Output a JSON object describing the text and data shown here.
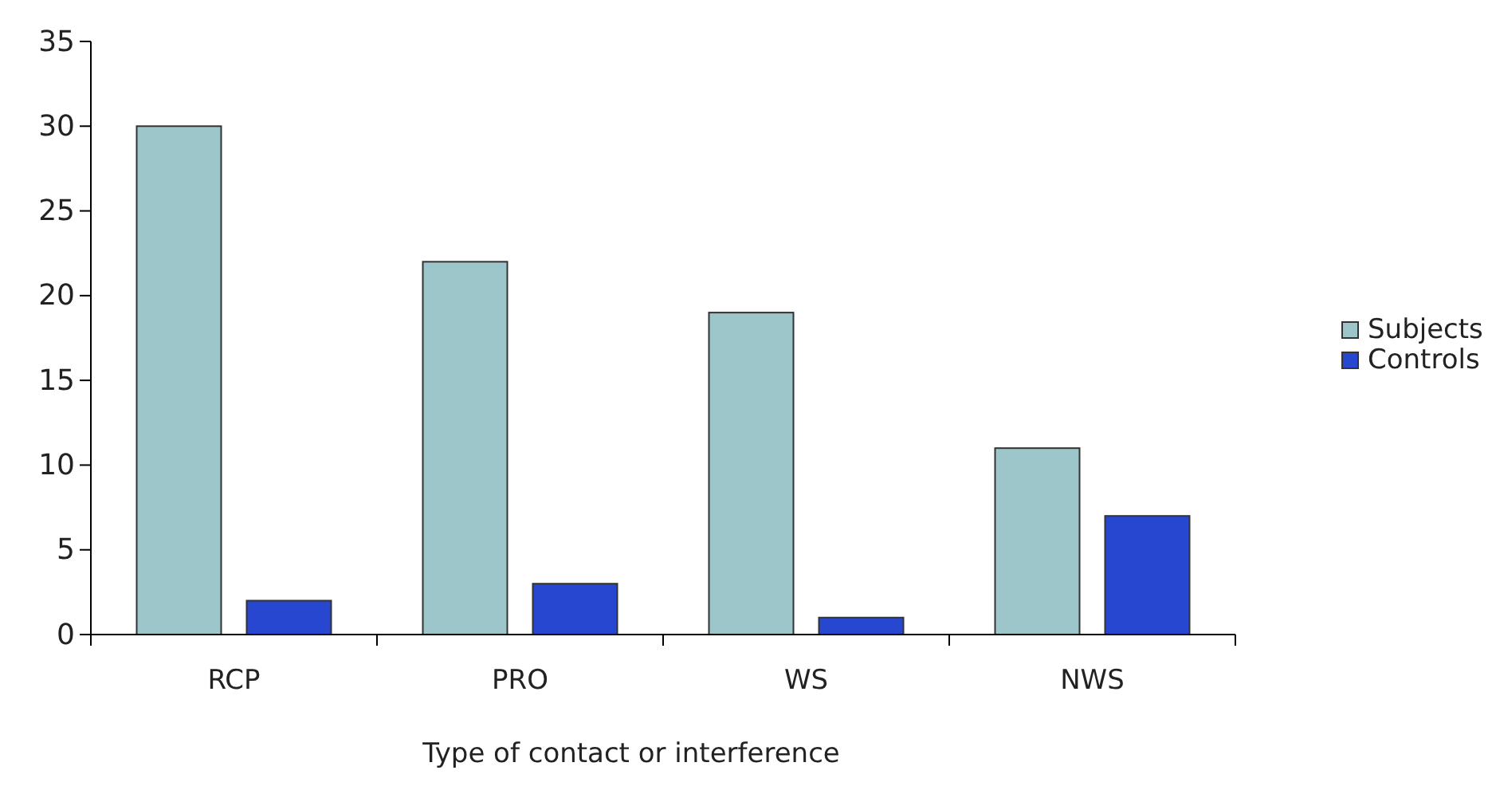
{
  "chart_data": {
    "type": "bar",
    "xlabel": "Type of contact or interference",
    "categories": [
      "RCP",
      "PRO",
      "WS",
      "NWS"
    ],
    "series": [
      {
        "name": "Subjects",
        "color": "#9cc6ca",
        "values": [
          30,
          22,
          19,
          11
        ]
      },
      {
        "name": "Controls",
        "color": "#2747d0",
        "values": [
          2,
          3,
          1,
          7
        ]
      }
    ],
    "ylim": [
      0,
      35
    ],
    "yticks": [
      0,
      5,
      10,
      15,
      20,
      25,
      30,
      35
    ],
    "grid": false,
    "legend": "right"
  }
}
